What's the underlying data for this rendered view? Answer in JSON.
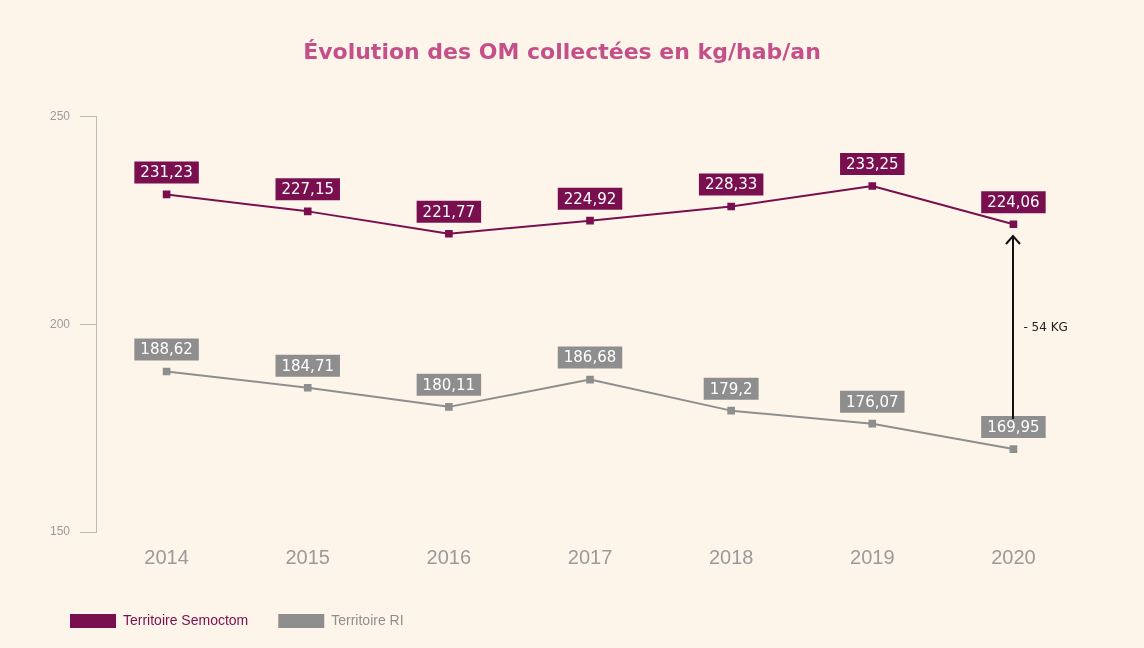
{
  "chart_data": {
    "type": "line",
    "title": "Évolution des OM collectées en kg/hab/an",
    "categories": [
      "2014",
      "2015",
      "2016",
      "2017",
      "2018",
      "2019",
      "2020"
    ],
    "series": [
      {
        "name": "Territoire Semoctom",
        "color": "#7a0f4f",
        "values": [
          231.23,
          227.15,
          221.77,
          224.92,
          228.33,
          233.25,
          224.06
        ],
        "value_labels": [
          "231,23",
          "227,15",
          "221,77",
          "224,92",
          "228,33",
          "233,25",
          "224,06"
        ]
      },
      {
        "name": "Territoire RI",
        "color": "#8e8e8e",
        "values": [
          188.62,
          184.71,
          180.11,
          186.68,
          179.2,
          176.07,
          169.95
        ],
        "value_labels": [
          "188,62",
          "184,71",
          "180,11",
          "186,68",
          "179,2",
          "176,07",
          "169,95"
        ]
      }
    ],
    "ylim": [
      150,
      250
    ],
    "yticks": [
      150,
      200,
      250
    ],
    "grid": false,
    "legend": "bottom left",
    "marker": "square",
    "line_style": "solid",
    "annotations": [
      "- 54 KG"
    ]
  }
}
